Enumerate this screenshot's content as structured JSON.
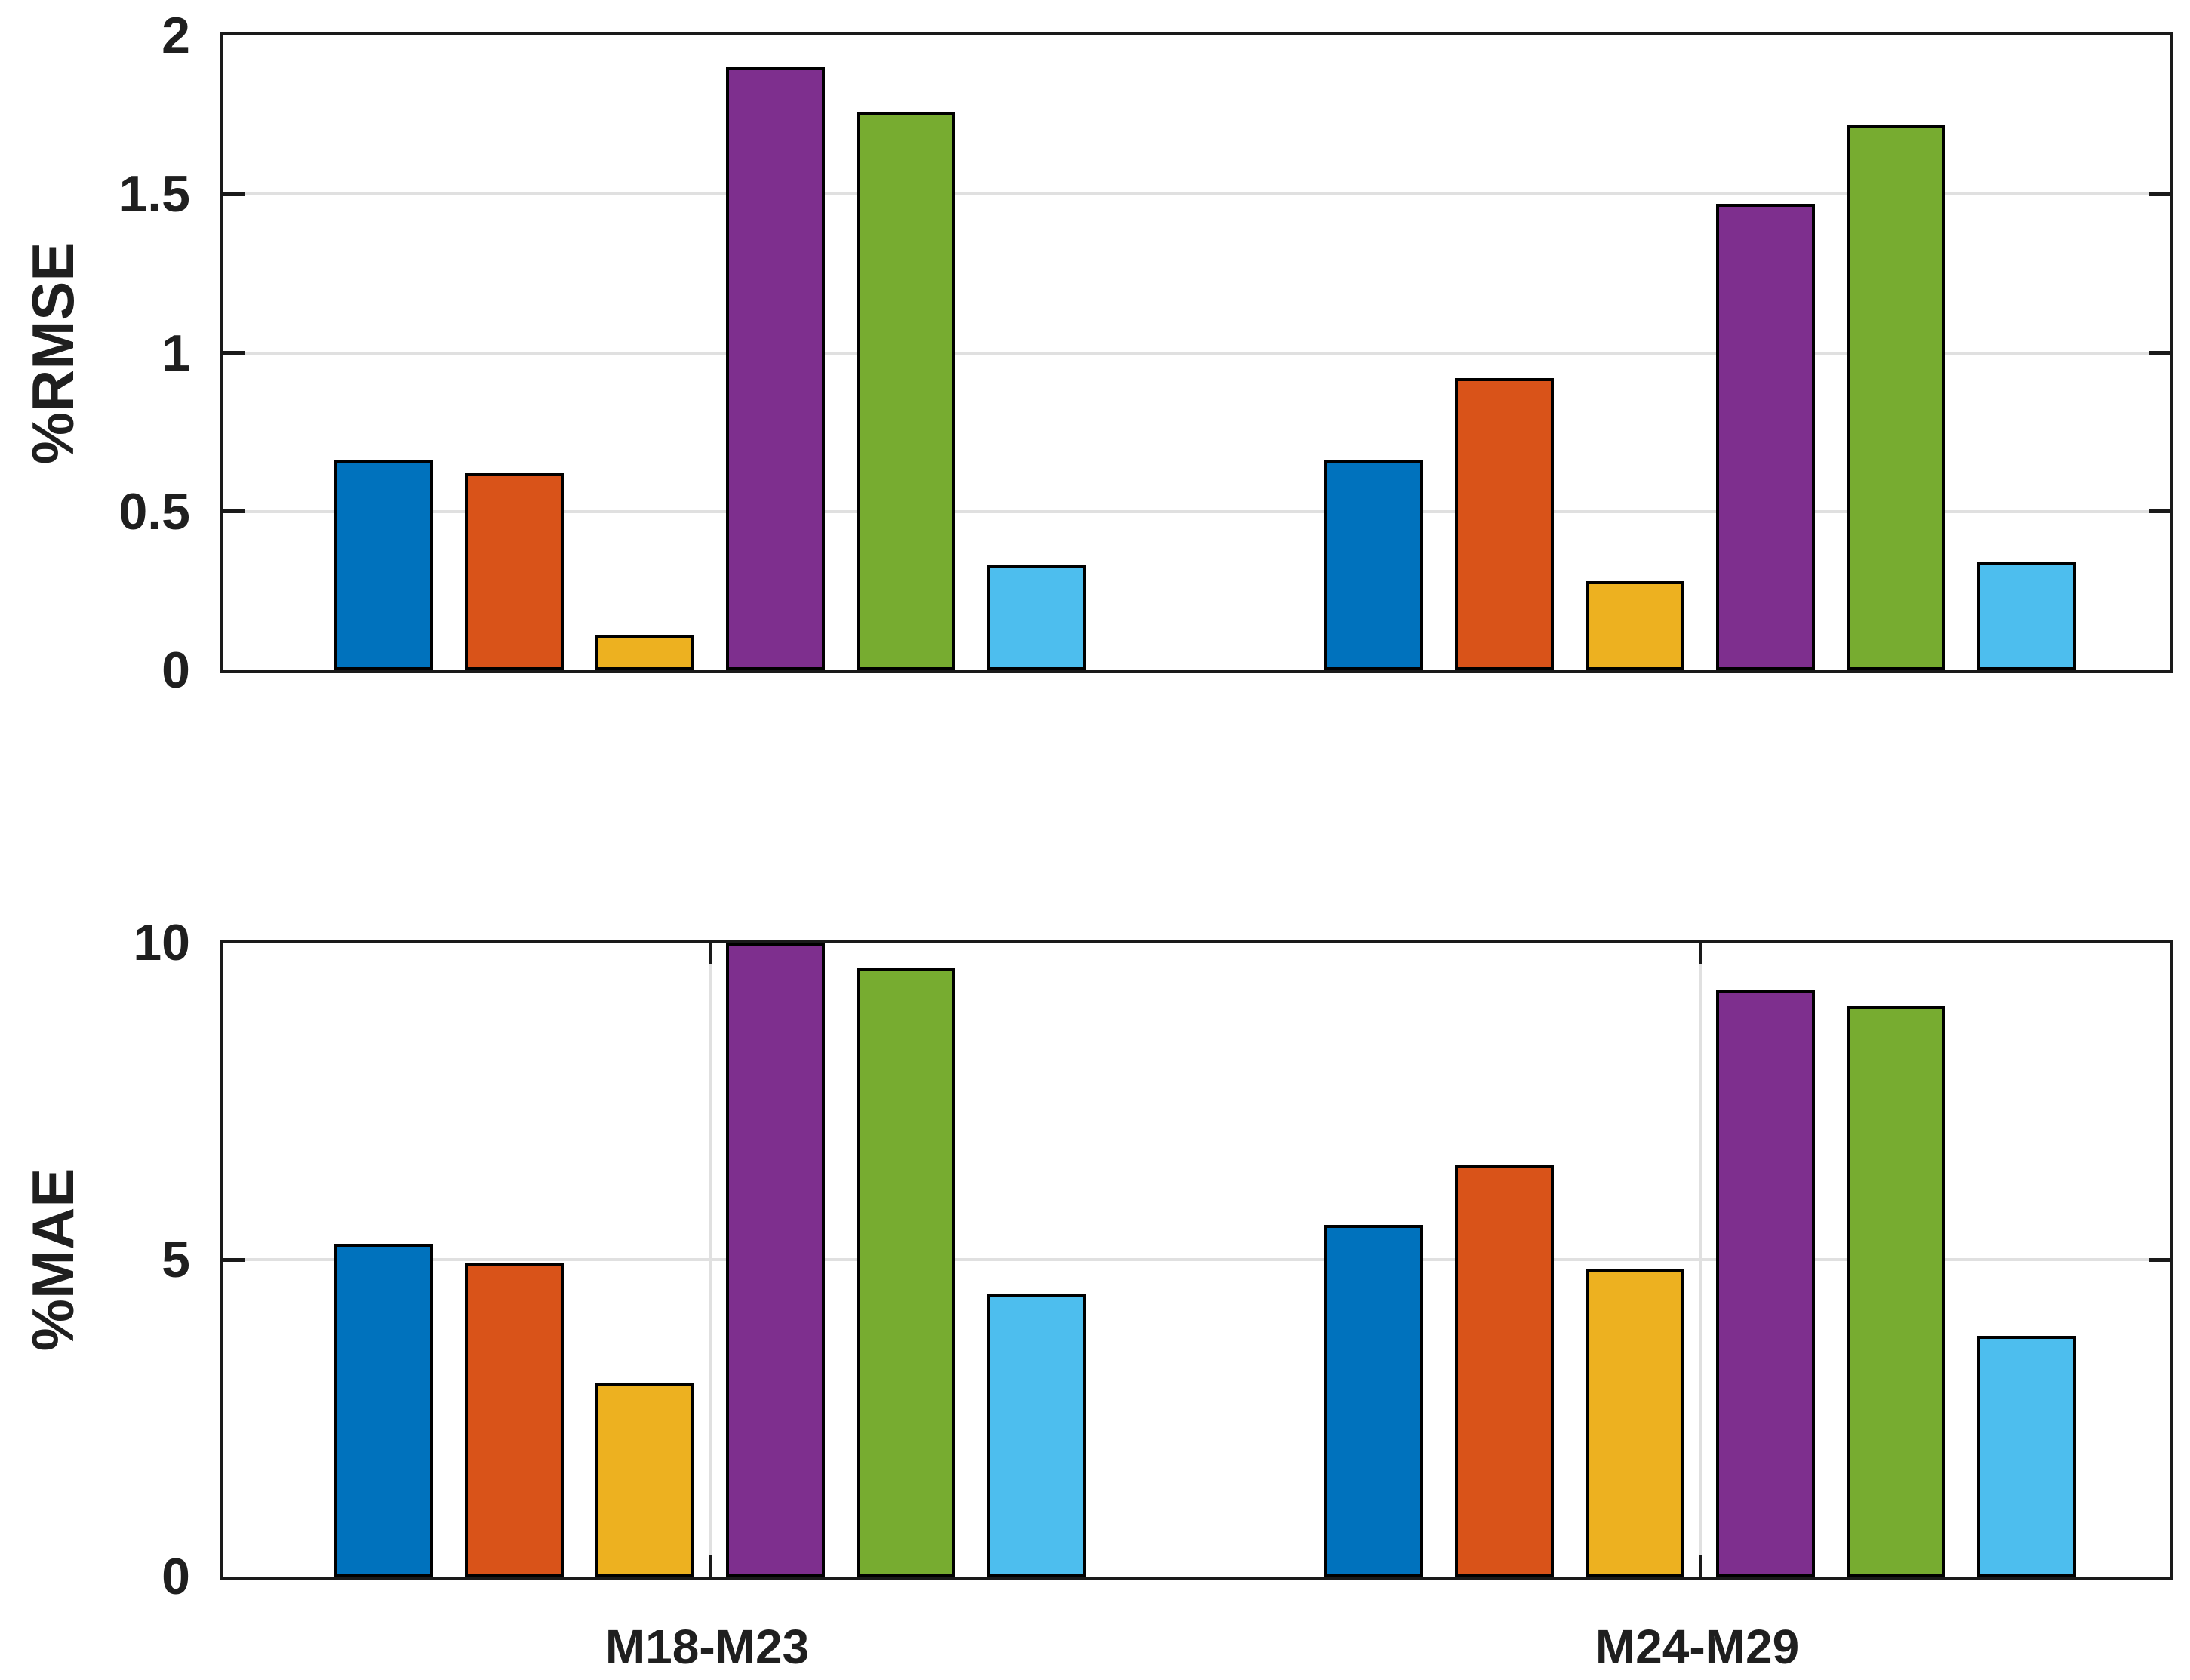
{
  "chart_data": [
    {
      "type": "bar",
      "title": "",
      "ylabel": "%RMSE",
      "xlabel": "",
      "ylim": [
        0,
        2
      ],
      "yticks": [
        0,
        0.5,
        1,
        1.5,
        2
      ],
      "ytick_labels": [
        "0",
        "0.5",
        "1",
        "1.5",
        "2"
      ],
      "categories": [
        "M18-M23",
        "M24-M29"
      ],
      "xtick_labels_visible": false,
      "grid": {
        "horizontal": true,
        "vertical": false
      },
      "legend": "none",
      "bar_edge_color": "#000000",
      "series": [
        {
          "name": "series-1-blue",
          "color": "#0072BD",
          "values": [
            0.66,
            0.66
          ]
        },
        {
          "name": "series-2-orange",
          "color": "#D95319",
          "values": [
            0.62,
            0.92
          ]
        },
        {
          "name": "series-3-yellow",
          "color": "#EDB120",
          "values": [
            0.11,
            0.28
          ]
        },
        {
          "name": "series-4-purple",
          "color": "#7E2F8E",
          "values": [
            1.9,
            1.47
          ]
        },
        {
          "name": "series-5-green",
          "color": "#77AC30",
          "values": [
            1.76,
            1.72
          ]
        },
        {
          "name": "series-6-cyan",
          "color": "#4DBEEE",
          "values": [
            0.33,
            0.34
          ]
        }
      ]
    },
    {
      "type": "bar",
      "title": "",
      "ylabel": "%MAE",
      "xlabel": "",
      "ylim": [
        0,
        10
      ],
      "yticks": [
        0,
        5,
        10
      ],
      "ytick_labels": [
        "0",
        "5",
        "10"
      ],
      "categories": [
        "M18-M23",
        "M24-M29"
      ],
      "xtick_labels_visible": true,
      "grid": {
        "horizontal": true,
        "vertical": true
      },
      "legend": "none",
      "bar_edge_color": "#000000",
      "series": [
        {
          "name": "series-1-blue",
          "color": "#0072BD",
          "values": [
            5.25,
            5.55
          ]
        },
        {
          "name": "series-2-orange",
          "color": "#D95319",
          "values": [
            4.95,
            6.5
          ]
        },
        {
          "name": "series-3-yellow",
          "color": "#EDB120",
          "values": [
            3.05,
            4.85
          ]
        },
        {
          "name": "series-4-purple",
          "color": "#7E2F8E",
          "values": [
            10.0,
            9.25
          ]
        },
        {
          "name": "series-5-green",
          "color": "#77AC30",
          "values": [
            9.6,
            9.0
          ]
        },
        {
          "name": "series-6-cyan",
          "color": "#4DBEEE",
          "values": [
            4.45,
            3.8
          ]
        }
      ]
    }
  ],
  "colors": {
    "background": "#ffffff",
    "axis": "#1a1a1a",
    "grid": "#e0e0e0",
    "text": "#1f1f1f"
  }
}
